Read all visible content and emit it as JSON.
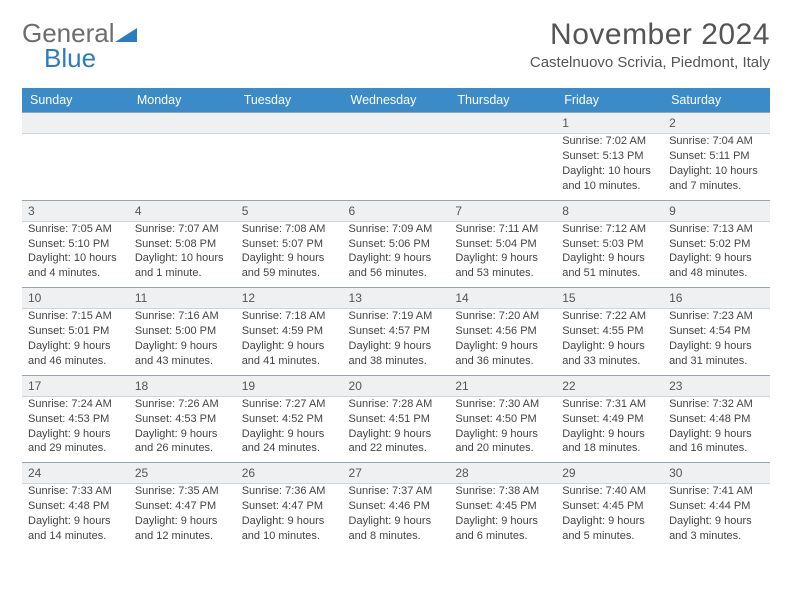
{
  "logo": {
    "word1": "General",
    "word2": "Blue"
  },
  "header": {
    "month": "November 2024",
    "location": "Castelnuovo Scrivia, Piedmont, Italy"
  },
  "weekdays": [
    "Sunday",
    "Monday",
    "Tuesday",
    "Wednesday",
    "Thursday",
    "Friday",
    "Saturday"
  ],
  "colors": {
    "header_bg": "#3b8bc9",
    "daynum_bg": "#eef0f2",
    "daynum_border": "#9aa4ae",
    "text": "#444"
  },
  "layout": {
    "weeks": 5,
    "cols": 7,
    "first_weekday_index": 5
  },
  "days": [
    {
      "n": 1,
      "sr": "7:02 AM",
      "ss": "5:13 PM",
      "dl": "10 hours and 10 minutes."
    },
    {
      "n": 2,
      "sr": "7:04 AM",
      "ss": "5:11 PM",
      "dl": "10 hours and 7 minutes."
    },
    {
      "n": 3,
      "sr": "7:05 AM",
      "ss": "5:10 PM",
      "dl": "10 hours and 4 minutes."
    },
    {
      "n": 4,
      "sr": "7:07 AM",
      "ss": "5:08 PM",
      "dl": "10 hours and 1 minute."
    },
    {
      "n": 5,
      "sr": "7:08 AM",
      "ss": "5:07 PM",
      "dl": "9 hours and 59 minutes."
    },
    {
      "n": 6,
      "sr": "7:09 AM",
      "ss": "5:06 PM",
      "dl": "9 hours and 56 minutes."
    },
    {
      "n": 7,
      "sr": "7:11 AM",
      "ss": "5:04 PM",
      "dl": "9 hours and 53 minutes."
    },
    {
      "n": 8,
      "sr": "7:12 AM",
      "ss": "5:03 PM",
      "dl": "9 hours and 51 minutes."
    },
    {
      "n": 9,
      "sr": "7:13 AM",
      "ss": "5:02 PM",
      "dl": "9 hours and 48 minutes."
    },
    {
      "n": 10,
      "sr": "7:15 AM",
      "ss": "5:01 PM",
      "dl": "9 hours and 46 minutes."
    },
    {
      "n": 11,
      "sr": "7:16 AM",
      "ss": "5:00 PM",
      "dl": "9 hours and 43 minutes."
    },
    {
      "n": 12,
      "sr": "7:18 AM",
      "ss": "4:59 PM",
      "dl": "9 hours and 41 minutes."
    },
    {
      "n": 13,
      "sr": "7:19 AM",
      "ss": "4:57 PM",
      "dl": "9 hours and 38 minutes."
    },
    {
      "n": 14,
      "sr": "7:20 AM",
      "ss": "4:56 PM",
      "dl": "9 hours and 36 minutes."
    },
    {
      "n": 15,
      "sr": "7:22 AM",
      "ss": "4:55 PM",
      "dl": "9 hours and 33 minutes."
    },
    {
      "n": 16,
      "sr": "7:23 AM",
      "ss": "4:54 PM",
      "dl": "9 hours and 31 minutes."
    },
    {
      "n": 17,
      "sr": "7:24 AM",
      "ss": "4:53 PM",
      "dl": "9 hours and 29 minutes."
    },
    {
      "n": 18,
      "sr": "7:26 AM",
      "ss": "4:53 PM",
      "dl": "9 hours and 26 minutes."
    },
    {
      "n": 19,
      "sr": "7:27 AM",
      "ss": "4:52 PM",
      "dl": "9 hours and 24 minutes."
    },
    {
      "n": 20,
      "sr": "7:28 AM",
      "ss": "4:51 PM",
      "dl": "9 hours and 22 minutes."
    },
    {
      "n": 21,
      "sr": "7:30 AM",
      "ss": "4:50 PM",
      "dl": "9 hours and 20 minutes."
    },
    {
      "n": 22,
      "sr": "7:31 AM",
      "ss": "4:49 PM",
      "dl": "9 hours and 18 minutes."
    },
    {
      "n": 23,
      "sr": "7:32 AM",
      "ss": "4:48 PM",
      "dl": "9 hours and 16 minutes."
    },
    {
      "n": 24,
      "sr": "7:33 AM",
      "ss": "4:48 PM",
      "dl": "9 hours and 14 minutes."
    },
    {
      "n": 25,
      "sr": "7:35 AM",
      "ss": "4:47 PM",
      "dl": "9 hours and 12 minutes."
    },
    {
      "n": 26,
      "sr": "7:36 AM",
      "ss": "4:47 PM",
      "dl": "9 hours and 10 minutes."
    },
    {
      "n": 27,
      "sr": "7:37 AM",
      "ss": "4:46 PM",
      "dl": "9 hours and 8 minutes."
    },
    {
      "n": 28,
      "sr": "7:38 AM",
      "ss": "4:45 PM",
      "dl": "9 hours and 6 minutes."
    },
    {
      "n": 29,
      "sr": "7:40 AM",
      "ss": "4:45 PM",
      "dl": "9 hours and 5 minutes."
    },
    {
      "n": 30,
      "sr": "7:41 AM",
      "ss": "4:44 PM",
      "dl": "9 hours and 3 minutes."
    }
  ],
  "labels": {
    "sunrise": "Sunrise:",
    "sunset": "Sunset:",
    "daylight": "Daylight:"
  }
}
